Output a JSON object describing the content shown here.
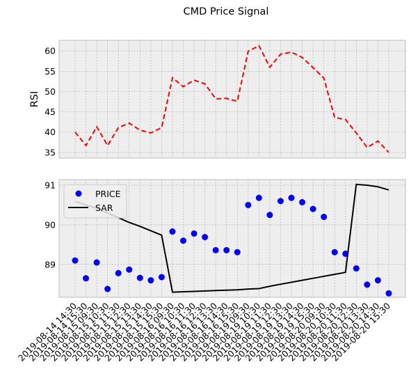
{
  "chart_data": {
    "type": "line",
    "title": "CMD Price Signal",
    "categories": [
      "2019-08-14 14:30",
      "2019-08-14 15:30",
      "2019-08-15 09:30",
      "2019-08-15 10:30",
      "2019-08-15 11:30",
      "2019-08-15 12:30",
      "2019-08-15 13:30",
      "2019-08-15 14:30",
      "2019-08-15 15:30",
      "2019-08-16 09:30",
      "2019-08-16 10:30",
      "2019-08-16 11:30",
      "2019-08-16 12:30",
      "2019-08-16 13:30",
      "2019-08-16 14:30",
      "2019-08-16 15:30",
      "2019-08-19 09:30",
      "2019-08-19 10:30",
      "2019-08-19 11:30",
      "2019-08-19 12:30",
      "2019-08-19 13:30",
      "2019-08-19 14:30",
      "2019-08-19 15:30",
      "2019-08-20 09:30",
      "2019-08-20 10:30",
      "2019-08-20 11:30",
      "2019-08-20 12:30",
      "2019-08-20 13:30",
      "2019-08-20 14:30",
      "2019-08-20 15:30"
    ],
    "panels": [
      {
        "name": "rsi-panel",
        "ylabel": "RSI",
        "ylim": [
          33.6,
          62.6
        ],
        "yticks": [
          35,
          40,
          45,
          50,
          55,
          60
        ],
        "series": [
          {
            "style": "dashed",
            "color": "#ff0000",
            "values": [
              40.0,
              36.7,
              41.3,
              36.7,
              41.1,
              42.2,
              40.5,
              39.8,
              41.1,
              53.4,
              51.2,
              52.8,
              51.9,
              48.2,
              48.3,
              47.6,
              59.9,
              61.3,
              56.0,
              59.2,
              59.7,
              58.4,
              55.9,
              53.3,
              43.6,
              43.1,
              39.8,
              36.2,
              37.8,
              35.0
            ]
          }
        ],
        "grid": true
      },
      {
        "name": "price-panel",
        "ylabel": "",
        "ylim": [
          88.17,
          91.14
        ],
        "yticks": [
          89,
          90,
          91
        ],
        "series": [
          {
            "name": "PRICE",
            "style": "markers",
            "color": "#0000ff",
            "values": [
              89.1,
              88.65,
              89.05,
              88.38,
              88.78,
              88.87,
              88.66,
              88.6,
              88.68,
              89.83,
              89.6,
              89.78,
              89.69,
              89.36,
              89.36,
              89.31,
              90.5,
              90.68,
              90.25,
              90.6,
              90.68,
              90.57,
              90.4,
              90.2,
              89.31,
              89.27,
              88.9,
              88.49,
              88.6,
              88.27
            ]
          },
          {
            "name": "SAR",
            "style": "solid",
            "color": "#000000",
            "values": [
              90.59,
              90.5,
              90.42,
              90.3,
              90.18,
              90.06,
              89.96,
              89.85,
              89.74,
              88.3,
              88.31,
              88.32,
              88.33,
              88.34,
              88.35,
              88.36,
              88.38,
              88.39,
              88.45,
              88.5,
              88.55,
              88.6,
              88.65,
              88.7,
              88.75,
              88.8,
              91.02,
              91.0,
              90.96,
              90.88
            ]
          }
        ],
        "legend": "upper-left",
        "grid": true
      }
    ]
  },
  "colors": {
    "axes_bg": "#eeeeee",
    "axes_edge": "#bcbcbc",
    "grid": "#b2b2b2"
  }
}
